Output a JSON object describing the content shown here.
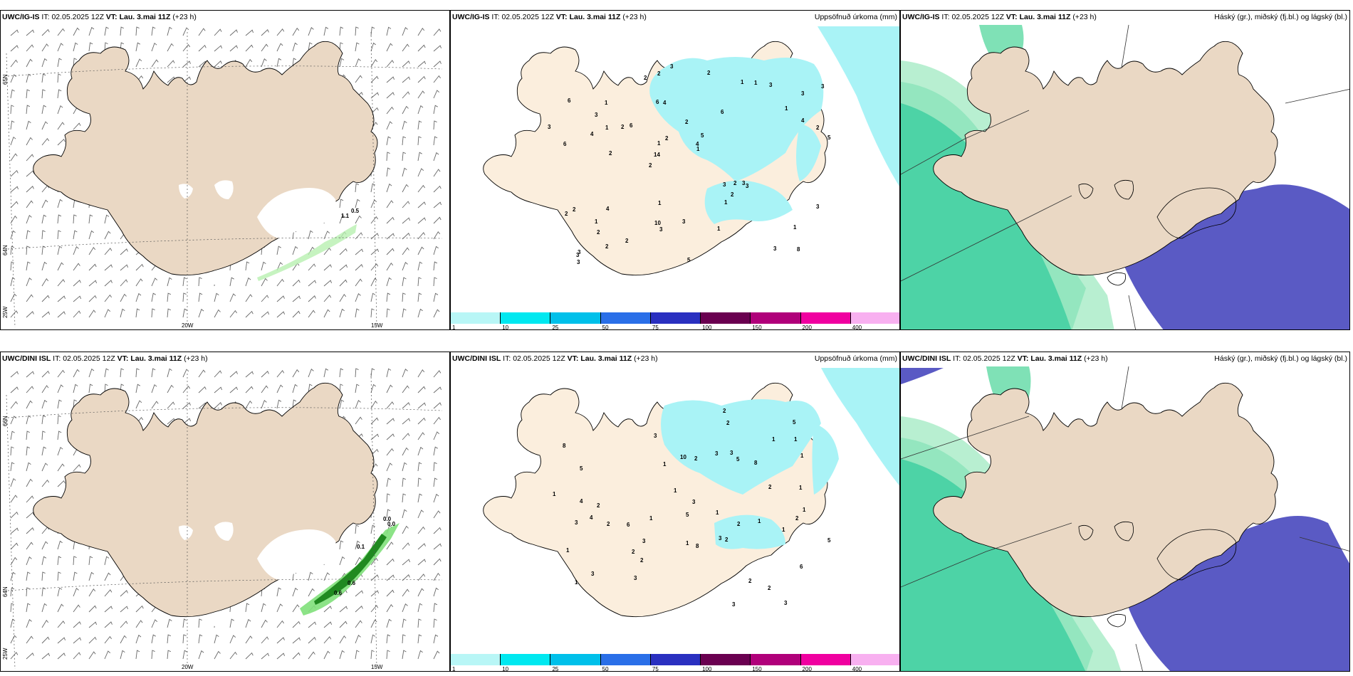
{
  "panels": [
    {
      "model": "UWC/IG-IS",
      "it_label": "IT:",
      "it": "02.05.2025 12Z",
      "vt_label": "VT:",
      "vt": "Lau. 3.mai 11Z",
      "lead": "(+23 h)",
      "right_title": ""
    },
    {
      "model": "UWC/IG-IS",
      "it_label": "IT:",
      "it": "02.05.2025 12Z",
      "vt_label": "VT:",
      "vt": "Lau. 3.mai 11Z",
      "lead": "(+23 h)",
      "right_title": "Uppsöfnuð úrkoma (mm)"
    },
    {
      "model": "UWC/IG-IS",
      "it_label": "IT:",
      "it": "02.05.2025 12Z",
      "vt_label": "VT:",
      "vt": "Lau. 3.mai 11Z",
      "lead": "(+23 h)",
      "right_title": "Háský (gr.), miðský (fj.bl.) og lágský (bl.)"
    },
    {
      "model": "UWC/DINI ISL",
      "it_label": "IT:",
      "it": "02.05.2025 12Z",
      "vt_label": "VT:",
      "vt": "Lau. 3.mai 11Z",
      "lead": "(+23 h)",
      "right_title": ""
    },
    {
      "model": "UWC/DINI ISL",
      "it_label": "IT:",
      "it": "02.05.2025 12Z",
      "vt_label": "VT:",
      "vt": "Lau. 3.mai 11Z",
      "lead": "(+23 h)",
      "right_title": "Uppsöfnuð úrkoma (mm)"
    },
    {
      "model": "UWC/DINI ISL",
      "it_label": "IT:",
      "it": "02.05.2025 12Z",
      "vt_label": "VT:",
      "vt": "Lau. 3.mai 11Z",
      "lead": "(+23 h)",
      "right_title": "Háský (gr.), miðský (fj.bl.) og lágský (bl.)"
    }
  ],
  "grid_labels": {
    "lon_20w": "20W",
    "lon_15w": "15W",
    "lat_65n": "65N",
    "lat_66n": "66N",
    "lat_64n": "64N",
    "lon_25w": "25W"
  },
  "colorbar": {
    "labels": [
      "1",
      "10",
      "25",
      "50",
      "75",
      "100",
      "150",
      "200",
      "400"
    ],
    "colors": [
      "#b8f6f6",
      "#00e8f0",
      "#00c0ea",
      "#2a6fe8",
      "#2a30c0",
      "#6a0050",
      "#b0007a",
      "#f000a0",
      "#f8b0f0"
    ]
  },
  "wind_annotations": {
    "top": [
      "0.5",
      "1.1"
    ],
    "bottom": [
      "0.0",
      "0.0",
      "0.1",
      "0.6",
      "0.6"
    ]
  },
  "precip_labels": {
    "top": [
      "8",
      "6",
      "3",
      "2",
      "6",
      "3",
      "6",
      "2",
      "2",
      "6",
      "2",
      "4",
      "5",
      "3",
      "6",
      "2",
      "5",
      "3",
      "4",
      "14",
      "10",
      "1",
      "1",
      "1",
      "4",
      "3",
      "1",
      "3",
      "5",
      "2",
      "4",
      "1",
      "2",
      "2",
      "4",
      "3",
      "1",
      "2",
      "1",
      "3",
      "2",
      "1",
      "1",
      "3",
      "3",
      "3",
      "3",
      "2",
      "3",
      "3",
      "1",
      "3",
      "2",
      "2",
      "2",
      "3",
      "1",
      "2",
      "2",
      "1"
    ],
    "bottom": [
      "3",
      "4",
      "3",
      "8",
      "6",
      "5",
      "3",
      "6",
      "8",
      "10",
      "5",
      "2",
      "2",
      "3",
      "1",
      "1",
      "1",
      "3",
      "1",
      "1",
      "5",
      "2",
      "2",
      "5",
      "1",
      "4",
      "2",
      "5",
      "1",
      "1",
      "2",
      "3",
      "2",
      "3",
      "1",
      "1",
      "2",
      "2",
      "1",
      "3",
      "3",
      "8",
      "3",
      "2",
      "1",
      "2",
      "1",
      "2",
      "3",
      "1",
      "2",
      "1"
    ]
  },
  "colors": {
    "land": "#ead8c4",
    "land_light": "#fbeedd",
    "snow": "#ffffff",
    "cloud_low": "#5a5ac4",
    "cloud_mid": "#2ecb96",
    "precip_light": "#a9f3f6",
    "precip_mid": "#00e4ef"
  }
}
